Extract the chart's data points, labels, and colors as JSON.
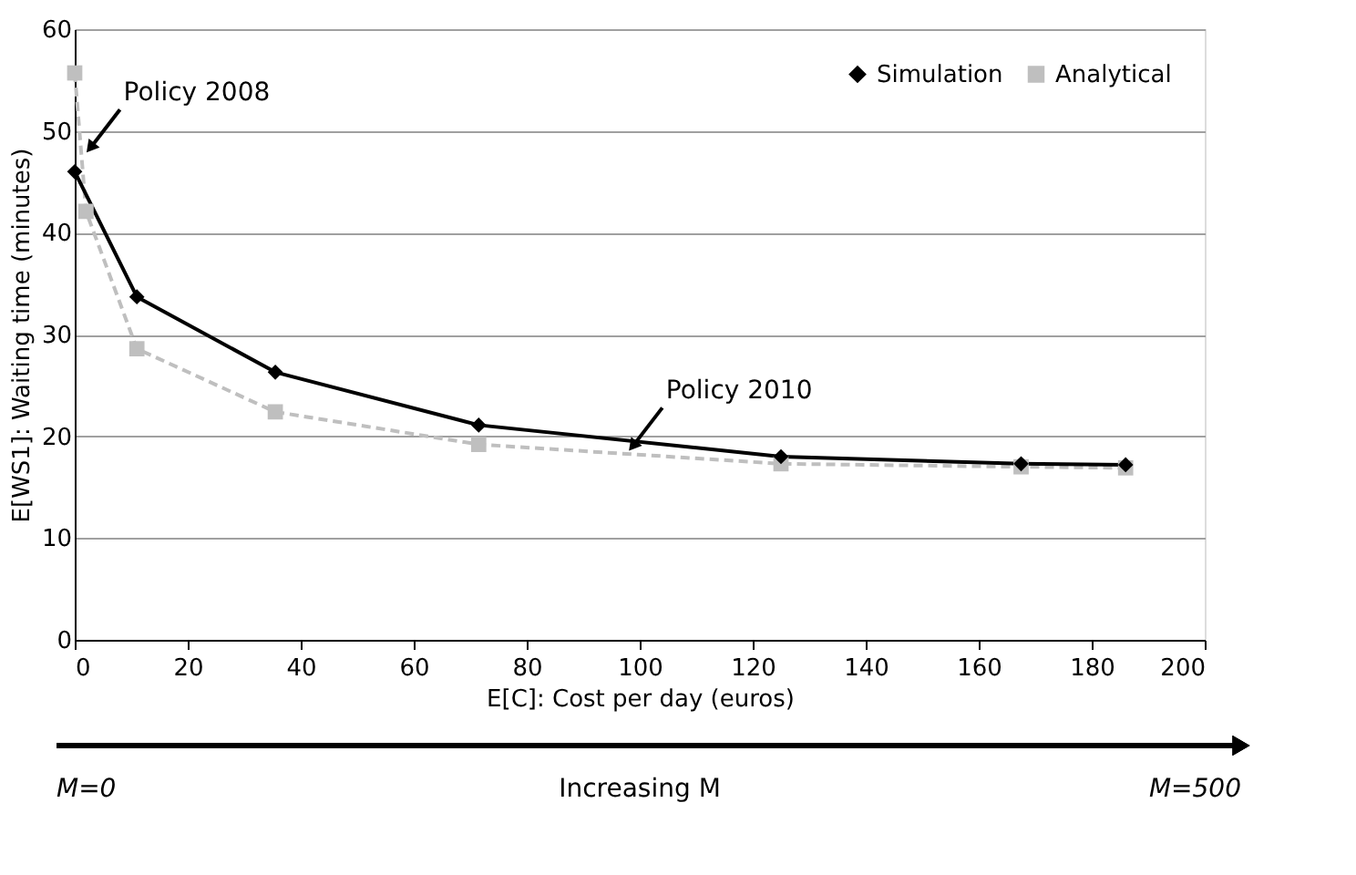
{
  "chart_data": {
    "type": "line",
    "xlabel": "E[C]: Cost per day (euros)",
    "ylabel": "E[WS1]: Waiting time (minutes)",
    "xlim": [
      0,
      200
    ],
    "xticks": [
      0,
      20,
      40,
      60,
      80,
      100,
      120,
      140,
      160,
      180,
      200
    ],
    "ylim": [
      0,
      60
    ],
    "yticks": [
      0,
      10,
      20,
      30,
      40,
      50,
      60
    ],
    "grid": "y",
    "legend": "top right",
    "series": [
      {
        "name": "Simulation",
        "color": "#000000",
        "marker": "diamond",
        "line_style": "solid",
        "x": [
          0,
          11,
          35.5,
          71.5,
          125,
          167.5,
          186
        ],
        "values": [
          46,
          33.7,
          26.3,
          21.1,
          18,
          17.3,
          17.2
        ]
      },
      {
        "name": "Analytical",
        "color": "#bfbfbf",
        "marker": "square",
        "line_style": "dashed",
        "x": [
          0,
          2,
          11,
          35.5,
          71.5,
          125,
          167.5,
          186
        ],
        "values": [
          55.7,
          42.1,
          28.6,
          22.4,
          19.2,
          17.3,
          17,
          16.9
        ]
      }
    ],
    "annotations": [
      {
        "text": "Policy 2008",
        "x": 3,
        "y": 48.5
      },
      {
        "text": "Policy 2010",
        "x": 99,
        "y": 19.2
      },
      "M=0",
      "Increasing M",
      "M=500"
    ]
  }
}
